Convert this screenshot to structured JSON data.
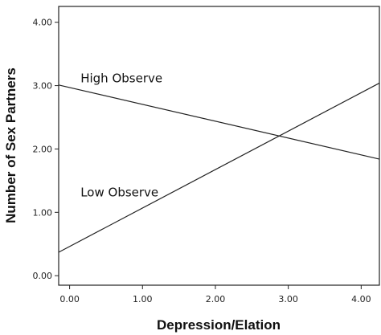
{
  "chart_data": {
    "type": "line",
    "title": "",
    "xlabel": "Depression/Elation",
    "ylabel": "Number of Sex Partners",
    "xlim": [
      -0.15,
      4.25
    ],
    "ylim": [
      -0.15,
      4.25
    ],
    "x_ticks": [
      "0.00",
      "1.00",
      "2.00",
      "3.00",
      "4.00"
    ],
    "y_ticks": [
      "0.00",
      "1.00",
      "2.00",
      "3.00",
      "4.00"
    ],
    "grid": false,
    "series": [
      {
        "name": "High Observe",
        "x": [
          -0.15,
          4.25
        ],
        "y": [
          3.01,
          1.84
        ]
      },
      {
        "name": "Low Observe",
        "x": [
          -0.15,
          4.25
        ],
        "y": [
          0.37,
          3.04
        ]
      }
    ]
  }
}
